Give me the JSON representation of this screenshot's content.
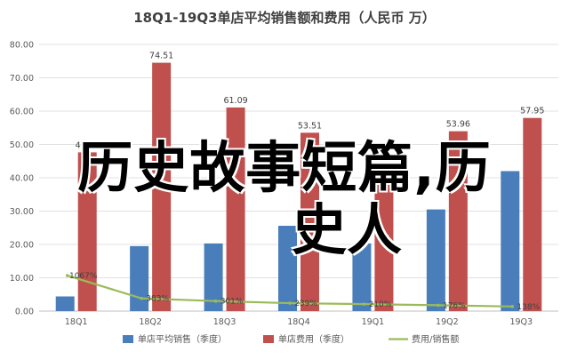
{
  "overlay": {
    "line1": "历史故事短篇,历",
    "line2": "史人"
  },
  "chart_data": {
    "type": "bar",
    "title": "18Q1-19Q3单店平均销售额和费用（人民币 万）",
    "categories": [
      "18Q1",
      "18Q2",
      "18Q3",
      "18Q4",
      "19Q1",
      "19Q2",
      "19Q3"
    ],
    "ylim": [
      0,
      80
    ],
    "yticks": [
      "0.00",
      "10.00",
      "20.00",
      "30.00",
      "40.00",
      "50.00",
      "60.00",
      "70.00",
      "80.00"
    ],
    "grid": true,
    "legend_position": "bottom",
    "series": [
      {
        "name": "单店平均销售（季度）",
        "kind": "bar",
        "color": "#4a7ebb",
        "values": [
          4.4,
          19.5,
          20.3,
          25.6,
          20.3,
          30.5,
          42.0
        ],
        "labels": [
          "",
          "",
          "",
          "",
          "",
          "",
          ""
        ]
      },
      {
        "name": "单店费用（季度）",
        "kind": "bar",
        "color": "#c0504d",
        "values": [
          47.63,
          74.51,
          61.09,
          53.51,
          42.0,
          53.96,
          57.95
        ],
        "labels": [
          "47.63",
          "74.51",
          "61.09",
          "53.51",
          "",
          "53.96",
          "57.95"
        ]
      },
      {
        "name": "费用/销售额",
        "kind": "line",
        "color": "#9bbb59",
        "values": [
          10.67,
          3.83,
          3.01,
          2.39,
          2.1,
          1.76,
          1.38
        ],
        "labels": [
          "1067%",
          "383%",
          "301%",
          "239%",
          "210%",
          "176%",
          "138%"
        ]
      }
    ]
  }
}
